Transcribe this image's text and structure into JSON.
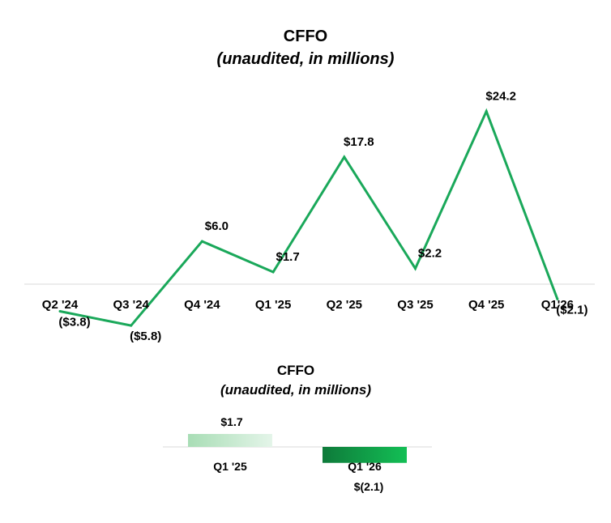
{
  "chart_data": [
    {
      "type": "line",
      "title": "CFFO",
      "subtitle": "(unaudited, in millions)",
      "categories": [
        "Q2 '24",
        "Q3 '24",
        "Q4 '24",
        "Q1 '25",
        "Q2 '25",
        "Q3 '25",
        "Q4 '25",
        "Q1'26"
      ],
      "values": [
        -3.8,
        -5.8,
        6.0,
        1.7,
        17.8,
        2.2,
        24.2,
        -2.1
      ],
      "data_labels": [
        "($3.8)",
        "($5.8)",
        "$6.0",
        "$1.7",
        "$17.8",
        "$2.2",
        "$24.2",
        "($2.1)"
      ],
      "ylim": [
        -6,
        24.2
      ],
      "line_color": "#1aa85a",
      "axis_color": "#d9d9d9",
      "grid": false,
      "legend": "none"
    },
    {
      "type": "bar",
      "title": "CFFO",
      "subtitle": "(unaudited, in millions)",
      "categories": [
        "Q1 '25",
        "Q1 '26"
      ],
      "values": [
        1.7,
        -2.1
      ],
      "data_labels": [
        "$1.7",
        "$(2.1)"
      ],
      "bar_colors": [
        [
          "#a8ddb5",
          "#e4f5e9"
        ],
        [
          "#0e7a3a",
          "#13bf55"
        ]
      ],
      "ylim": [
        -2.1,
        1.7
      ],
      "axis_color": "#d9d9d9",
      "grid": false,
      "legend": "none"
    }
  ]
}
